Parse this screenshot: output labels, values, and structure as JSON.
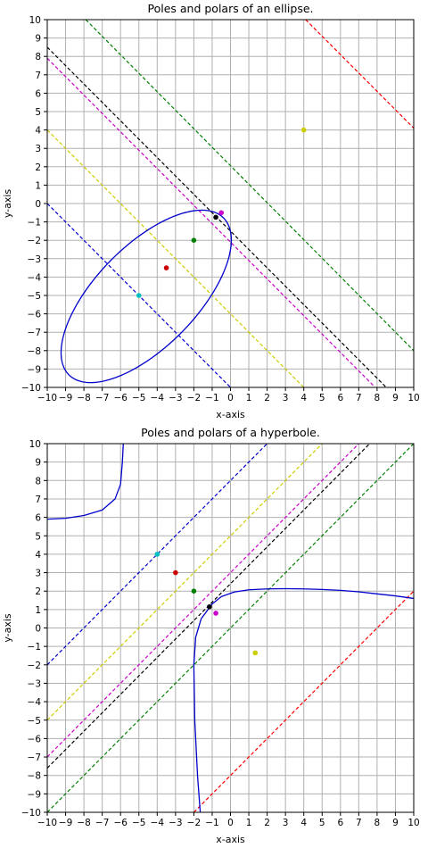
{
  "chart_data": [
    {
      "type": "line",
      "title": "Poles and polars of an ellipse.",
      "xlabel": "x-axis",
      "ylabel": "y-axis",
      "xlim": [
        -10,
        10
      ],
      "ylim": [
        -10,
        10
      ],
      "xticks": [
        -10,
        -9,
        -8,
        -7,
        -6,
        -5,
        -4,
        -3,
        -2,
        -1,
        0,
        1,
        2,
        3,
        4,
        5,
        6,
        7,
        8,
        9,
        10
      ],
      "yticks": [
        -10,
        -9,
        -8,
        -7,
        -6,
        -5,
        -4,
        -3,
        -2,
        -1,
        0,
        1,
        2,
        3,
        4,
        5,
        6,
        7,
        8,
        9,
        10
      ],
      "grid": true,
      "conic": {
        "kind": "ellipse",
        "color": "#0000cc",
        "center": [
          -4.6,
          -5.05
        ],
        "axis_dir": [
          0.7,
          0.71
        ],
        "semi_axes": [
          6.0,
          2.75
        ]
      },
      "polars": [
        {
          "color": "#ff0000",
          "points": [
            [
              4.1,
              10
            ],
            [
              10,
              4.1
            ]
          ]
        },
        {
          "color": "#008000",
          "points": [
            [
              -7.9,
              10
            ],
            [
              10,
              -8.0
            ]
          ]
        },
        {
          "color": "#000000",
          "points": [
            [
              -10,
              8.5
            ],
            [
              8.5,
              -10
            ]
          ]
        },
        {
          "color": "#cc00cc",
          "points": [
            [
              -10,
              7.9
            ],
            [
              7.9,
              -10
            ]
          ]
        },
        {
          "color": "#cccc00",
          "points": [
            [
              -10,
              4.0
            ],
            [
              4.0,
              -10
            ]
          ]
        },
        {
          "color": "#0000cc",
          "points": [
            [
              -10,
              0.0
            ],
            [
              0.0,
              -10
            ]
          ]
        }
      ],
      "poles": [
        {
          "color": "#cc0000",
          "x": -3.5,
          "y": -3.5
        },
        {
          "color": "#008000",
          "x": -2.0,
          "y": -2.0
        },
        {
          "color": "#000000",
          "x": -0.8,
          "y": -0.75
        },
        {
          "color": "#cc00cc",
          "x": -0.5,
          "y": -0.5
        },
        {
          "color": "#cccc00",
          "x": 4.0,
          "y": 4.0
        },
        {
          "color": "#00bfbf",
          "x": -5.0,
          "y": -5.0
        }
      ]
    },
    {
      "type": "line",
      "title": "Poles and polars of a hyperbole.",
      "xlabel": "x-axis",
      "ylabel": "y-axis",
      "xlim": [
        -10,
        10
      ],
      "ylim": [
        -10,
        10
      ],
      "xticks": [
        -10,
        -9,
        -8,
        -7,
        -6,
        -5,
        -4,
        -3,
        -2,
        -1,
        0,
        1,
        2,
        3,
        4,
        5,
        6,
        7,
        8,
        9,
        10
      ],
      "yticks": [
        -10,
        -9,
        -8,
        -7,
        -6,
        -5,
        -4,
        -3,
        -2,
        -1,
        0,
        1,
        2,
        3,
        4,
        5,
        6,
        7,
        8,
        9,
        10
      ],
      "grid": true,
      "conic": {
        "kind": "hyperbola",
        "color": "#0000cc",
        "branches": [
          [
            [
              -10,
              5.9
            ],
            [
              -9,
              5.95
            ],
            [
              -8,
              6.1
            ],
            [
              -7,
              6.4
            ],
            [
              -6.3,
              7.0
            ],
            [
              -6.0,
              7.8
            ],
            [
              -5.9,
              9.0
            ],
            [
              -5.85,
              10
            ]
          ],
          [
            [
              -1.65,
              -10
            ],
            [
              -1.8,
              -8
            ],
            [
              -1.95,
              -5
            ],
            [
              -2.0,
              -2
            ],
            [
              -1.9,
              -0.5
            ],
            [
              -1.6,
              0.5
            ],
            [
              -1.0,
              1.3
            ],
            [
              -0.5,
              1.7
            ],
            [
              0.2,
              1.95
            ],
            [
              1.0,
              2.07
            ],
            [
              2.0,
              2.12
            ],
            [
              3.0,
              2.13
            ],
            [
              4.0,
              2.12
            ],
            [
              5.0,
              2.09
            ],
            [
              6.0,
              2.04
            ],
            [
              7.0,
              1.96
            ],
            [
              8.0,
              1.85
            ],
            [
              9.0,
              1.74
            ],
            [
              10.0,
              1.6
            ]
          ]
        ]
      },
      "polars": [
        {
          "color": "#ff0000",
          "points": [
            [
              -2.0,
              -10
            ],
            [
              10,
              2.0
            ]
          ]
        },
        {
          "color": "#008000",
          "points": [
            [
              -10,
              -10
            ],
            [
              10,
              10
            ]
          ]
        },
        {
          "color": "#000000",
          "points": [
            [
              -10,
              -7.6
            ],
            [
              7.6,
              10
            ]
          ]
        },
        {
          "color": "#cc00cc",
          "points": [
            [
              -10,
              -7.0
            ],
            [
              7.0,
              10
            ]
          ]
        },
        {
          "color": "#cccc00",
          "points": [
            [
              -10,
              -5.0
            ],
            [
              5.0,
              10
            ]
          ]
        },
        {
          "color": "#0000cc",
          "points": [
            [
              -10,
              -2.0
            ],
            [
              2.0,
              10
            ]
          ]
        }
      ],
      "poles": [
        {
          "color": "#cc0000",
          "x": -3.0,
          "y": 3.0
        },
        {
          "color": "#008000",
          "x": -2.0,
          "y": 2.0
        },
        {
          "color": "#000000",
          "x": -1.15,
          "y": 1.15
        },
        {
          "color": "#cc00cc",
          "x": -0.8,
          "y": 0.8
        },
        {
          "color": "#cccc00",
          "x": 1.35,
          "y": -1.35
        },
        {
          "color": "#00bfbf",
          "x": -4.0,
          "y": 4.0
        }
      ]
    }
  ]
}
